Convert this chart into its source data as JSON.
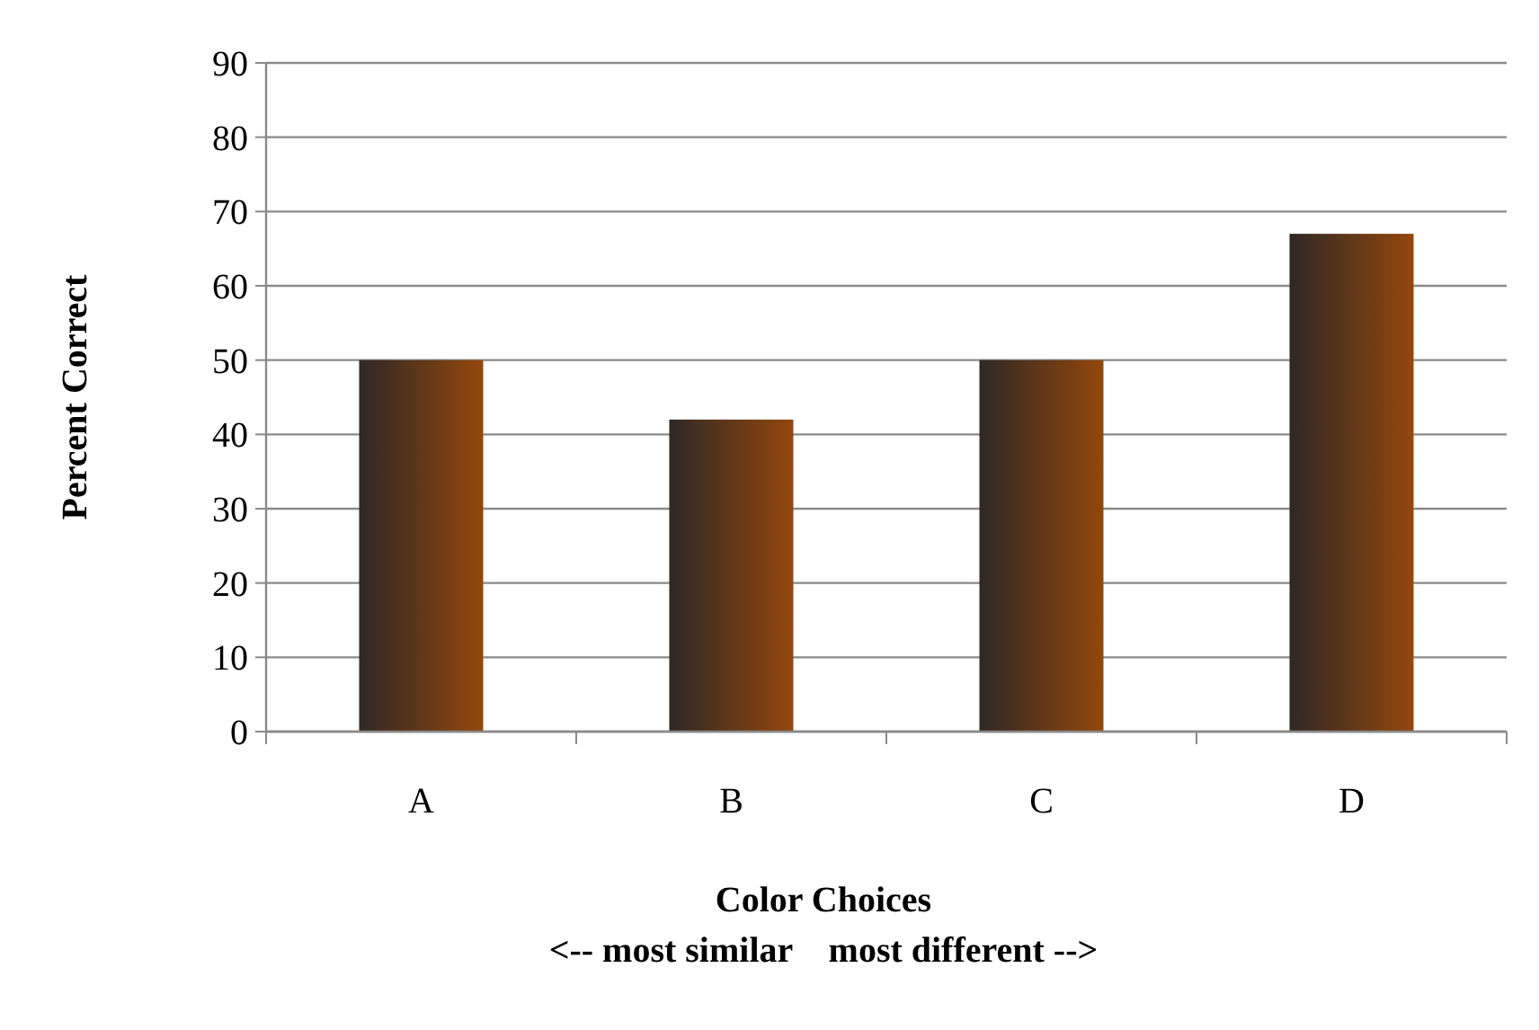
{
  "chart_data": {
    "type": "bar",
    "xlabel": "Color Choices\n<-- most similar    most different -->",
    "ylabel": "Percent Correct",
    "categories": [
      "A",
      "B",
      "C",
      "D"
    ],
    "values": [
      50,
      42,
      50,
      67
    ],
    "color": "#93470c",
    "ylim": [
      0,
      90
    ],
    "yticks": [
      0,
      10,
      20,
      30,
      40,
      50,
      60,
      70,
      80,
      90
    ],
    "grid": "y"
  }
}
